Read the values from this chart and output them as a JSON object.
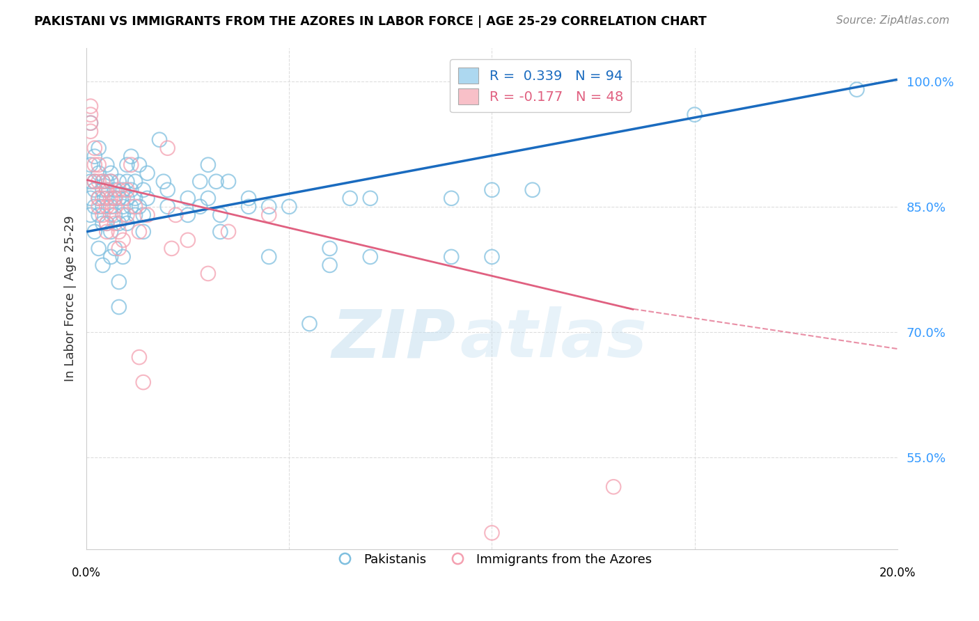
{
  "title": "PAKISTANI VS IMMIGRANTS FROM THE AZORES IN LABOR FORCE | AGE 25-29 CORRELATION CHART",
  "source": "Source: ZipAtlas.com",
  "ylabel": "In Labor Force | Age 25-29",
  "y_ticks": [
    0.55,
    0.7,
    0.85,
    1.0
  ],
  "y_tick_labels": [
    "55.0%",
    "70.0%",
    "85.0%",
    "100.0%"
  ],
  "x_min": 0.0,
  "x_max": 0.2,
  "y_min": 0.44,
  "y_max": 1.04,
  "blue_color": "#7fbfdf",
  "pink_color": "#f4a0b0",
  "blue_trend_color": "#1a6bbf",
  "pink_trend_color": "#e06080",
  "watermark_zip": "ZIP",
  "watermark_atlas": "atlas",
  "blue_scatter": [
    [
      0.001,
      0.88
    ],
    [
      0.001,
      0.9
    ],
    [
      0.001,
      0.95
    ],
    [
      0.001,
      0.86
    ],
    [
      0.001,
      0.84
    ],
    [
      0.002,
      0.88
    ],
    [
      0.002,
      0.87
    ],
    [
      0.002,
      0.91
    ],
    [
      0.002,
      0.85
    ],
    [
      0.002,
      0.82
    ],
    [
      0.003,
      0.89
    ],
    [
      0.003,
      0.86
    ],
    [
      0.003,
      0.84
    ],
    [
      0.003,
      0.8
    ],
    [
      0.003,
      0.92
    ],
    [
      0.004,
      0.88
    ],
    [
      0.004,
      0.87
    ],
    [
      0.004,
      0.85
    ],
    [
      0.004,
      0.83
    ],
    [
      0.004,
      0.78
    ],
    [
      0.005,
      0.88
    ],
    [
      0.005,
      0.86
    ],
    [
      0.005,
      0.87
    ],
    [
      0.005,
      0.9
    ],
    [
      0.005,
      0.83
    ],
    [
      0.006,
      0.88
    ],
    [
      0.006,
      0.89
    ],
    [
      0.006,
      0.85
    ],
    [
      0.006,
      0.82
    ],
    [
      0.006,
      0.79
    ],
    [
      0.007,
      0.86
    ],
    [
      0.007,
      0.84
    ],
    [
      0.007,
      0.87
    ],
    [
      0.007,
      0.8
    ],
    [
      0.008,
      0.88
    ],
    [
      0.008,
      0.86
    ],
    [
      0.008,
      0.83
    ],
    [
      0.008,
      0.76
    ],
    [
      0.008,
      0.73
    ],
    [
      0.009,
      0.87
    ],
    [
      0.009,
      0.85
    ],
    [
      0.009,
      0.84
    ],
    [
      0.009,
      0.79
    ],
    [
      0.01,
      0.9
    ],
    [
      0.01,
      0.88
    ],
    [
      0.01,
      0.86
    ],
    [
      0.01,
      0.83
    ],
    [
      0.011,
      0.87
    ],
    [
      0.011,
      0.85
    ],
    [
      0.011,
      0.91
    ],
    [
      0.012,
      0.88
    ],
    [
      0.012,
      0.86
    ],
    [
      0.012,
      0.84
    ],
    [
      0.013,
      0.9
    ],
    [
      0.013,
      0.85
    ],
    [
      0.014,
      0.87
    ],
    [
      0.014,
      0.84
    ],
    [
      0.014,
      0.82
    ],
    [
      0.015,
      0.89
    ],
    [
      0.015,
      0.86
    ],
    [
      0.018,
      0.93
    ],
    [
      0.019,
      0.88
    ],
    [
      0.02,
      0.87
    ],
    [
      0.02,
      0.85
    ],
    [
      0.025,
      0.86
    ],
    [
      0.025,
      0.84
    ],
    [
      0.028,
      0.88
    ],
    [
      0.028,
      0.85
    ],
    [
      0.03,
      0.9
    ],
    [
      0.03,
      0.86
    ],
    [
      0.032,
      0.88
    ],
    [
      0.033,
      0.84
    ],
    [
      0.033,
      0.82
    ],
    [
      0.035,
      0.88
    ],
    [
      0.04,
      0.86
    ],
    [
      0.04,
      0.85
    ],
    [
      0.045,
      0.85
    ],
    [
      0.045,
      0.79
    ],
    [
      0.05,
      0.85
    ],
    [
      0.055,
      0.71
    ],
    [
      0.06,
      0.8
    ],
    [
      0.06,
      0.78
    ],
    [
      0.065,
      0.86
    ],
    [
      0.07,
      0.86
    ],
    [
      0.07,
      0.79
    ],
    [
      0.09,
      0.86
    ],
    [
      0.09,
      0.79
    ],
    [
      0.1,
      0.87
    ],
    [
      0.1,
      0.79
    ],
    [
      0.11,
      0.87
    ],
    [
      0.15,
      0.96
    ],
    [
      0.19,
      0.99
    ]
  ],
  "pink_scatter": [
    [
      0.001,
      0.97
    ],
    [
      0.001,
      0.96
    ],
    [
      0.001,
      0.95
    ],
    [
      0.001,
      0.94
    ],
    [
      0.002,
      0.92
    ],
    [
      0.002,
      0.9
    ],
    [
      0.002,
      0.88
    ],
    [
      0.003,
      0.9
    ],
    [
      0.003,
      0.88
    ],
    [
      0.003,
      0.86
    ],
    [
      0.003,
      0.85
    ],
    [
      0.004,
      0.88
    ],
    [
      0.004,
      0.86
    ],
    [
      0.004,
      0.84
    ],
    [
      0.005,
      0.87
    ],
    [
      0.005,
      0.85
    ],
    [
      0.005,
      0.83
    ],
    [
      0.005,
      0.82
    ],
    [
      0.006,
      0.88
    ],
    [
      0.006,
      0.86
    ],
    [
      0.006,
      0.84
    ],
    [
      0.007,
      0.86
    ],
    [
      0.007,
      0.85
    ],
    [
      0.007,
      0.83
    ],
    [
      0.008,
      0.87
    ],
    [
      0.008,
      0.82
    ],
    [
      0.008,
      0.8
    ],
    [
      0.009,
      0.86
    ],
    [
      0.009,
      0.81
    ],
    [
      0.01,
      0.87
    ],
    [
      0.01,
      0.84
    ],
    [
      0.011,
      0.9
    ],
    [
      0.012,
      0.85
    ],
    [
      0.013,
      0.82
    ],
    [
      0.013,
      0.67
    ],
    [
      0.014,
      0.64
    ],
    [
      0.015,
      0.84
    ],
    [
      0.02,
      0.92
    ],
    [
      0.021,
      0.8
    ],
    [
      0.022,
      0.84
    ],
    [
      0.025,
      0.81
    ],
    [
      0.03,
      0.77
    ],
    [
      0.035,
      0.82
    ],
    [
      0.045,
      0.84
    ],
    [
      0.1,
      0.46
    ],
    [
      0.13,
      0.515
    ]
  ],
  "blue_trend_x0": 0.0,
  "blue_trend_x1": 0.2,
  "blue_trend_y0": 0.82,
  "blue_trend_y1": 1.002,
  "pink_trend_solid_x0": 0.0,
  "pink_trend_solid_x1": 0.135,
  "pink_trend_y0": 0.882,
  "pink_trend_y1": 0.727,
  "pink_trend_dash_x0": 0.133,
  "pink_trend_dash_x1": 0.2,
  "pink_trend_dash_y0": 0.729,
  "pink_trend_dash_y1": 0.68
}
